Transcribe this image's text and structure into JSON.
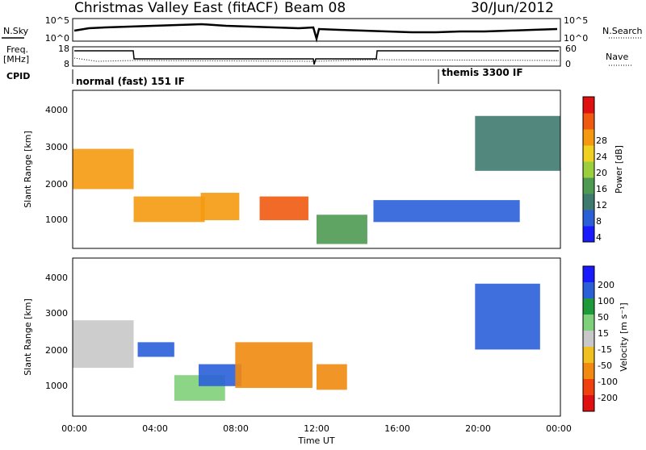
{
  "header": {
    "station": "Christmas Valley East (fitACF)",
    "beam": "Beam 08",
    "date": "30/Jun/2012"
  },
  "noise_panel": {
    "left_label": "N.Sky",
    "right_label": "N.Search",
    "left_ticks": [
      "10^5",
      "10^0"
    ],
    "right_ticks": [
      "10^5",
      "10^0"
    ]
  },
  "freq_panel": {
    "left_label_1": "Freq.",
    "left_label_2": "[MHz]",
    "right_label": "Nave",
    "left_ticks": [
      "18",
      "8"
    ],
    "right_ticks": [
      "60",
      "0"
    ]
  },
  "cpid": {
    "label": "CPID",
    "modes": [
      "normal (fast) 151 IF",
      "themis 3300 IF"
    ]
  },
  "power_panel": {
    "ylabel": "Slant Range [km]",
    "yticks": [
      "4000",
      "3000",
      "2000",
      "1000"
    ],
    "colorbar_label": "Power [dB]",
    "colorbar_ticks": [
      "28",
      "24",
      "20",
      "16",
      "12",
      "8",
      "4"
    ],
    "colors": [
      "#1a1aff",
      "#2a5fd8",
      "#3e7a6e",
      "#4f9a52",
      "#9bcf3e",
      "#f0d020",
      "#f59a10",
      "#f05a10",
      "#e01010"
    ]
  },
  "velocity_panel": {
    "ylabel": "Slant Range [km]",
    "yticks": [
      "4000",
      "3000",
      "2000",
      "1000"
    ],
    "colorbar_label": "Velocity [m s⁻¹]",
    "colorbar_ticks": [
      "200",
      "100",
      "50",
      "15",
      "-15",
      "-50",
      "-100",
      "-200"
    ],
    "colors": [
      "#1a1aff",
      "#2a5fd8",
      "#1f9a3a",
      "#7fd07a",
      "#c8c8c8",
      "#f0c020",
      "#f08a10",
      "#f04010",
      "#e01010"
    ]
  },
  "xaxis": {
    "label": "Time UT",
    "ticks": [
      "00:00",
      "04:00",
      "08:00",
      "12:00",
      "16:00",
      "20:00",
      "00:00"
    ]
  },
  "chart_data": {
    "type": "heatmap",
    "title": "Christmas Valley East (fitACF) Beam 08",
    "date": "30/Jun/2012",
    "x_range_hours": [
      0,
      24
    ],
    "y_range_km": [
      180,
      4500
    ],
    "power_scale_db": [
      0,
      30
    ],
    "velocity_scale": [
      -200,
      200
    ],
    "panels": [
      "N.Sky / N.Search",
      "Freq. / Nave",
      "CPID",
      "Power [dB]",
      "Velocity [m s⁻¹]"
    ],
    "cpid_modes": [
      {
        "name": "normal (fast) 151 IF",
        "start_hour": 0,
        "end_hour": 18
      },
      {
        "name": "themis 3300 IF",
        "start_hour": 18,
        "end_hour": 24
      }
    ],
    "power_echo_regions": [
      {
        "t": [
          0.0,
          3.0
        ],
        "range_km": [
          1800,
          2900
        ],
        "power_db": 22
      },
      {
        "t": [
          3.0,
          6.5
        ],
        "range_km": [
          900,
          1600
        ],
        "power_db": 24
      },
      {
        "t": [
          6.3,
          8.2
        ],
        "range_km": [
          950,
          1700
        ],
        "power_db": 22
      },
      {
        "t": [
          9.2,
          11.6
        ],
        "range_km": [
          950,
          1600
        ],
        "power_db": 26
      },
      {
        "t": [
          12.0,
          14.5
        ],
        "range_km": [
          300,
          1100
        ],
        "power_db": 14
      },
      {
        "t": [
          14.8,
          22.0
        ],
        "range_km": [
          900,
          1500
        ],
        "power_db": 8
      },
      {
        "t": [
          19.8,
          24.0
        ],
        "range_km": [
          2300,
          3800
        ],
        "power_db": 10
      }
    ],
    "velocity_echo_regions": [
      {
        "t": [
          0.0,
          3.0
        ],
        "range_km": [
          1500,
          2800
        ],
        "velocity": 0
      },
      {
        "t": [
          3.2,
          5.0
        ],
        "range_km": [
          1800,
          2200
        ],
        "velocity": 150
      },
      {
        "t": [
          5.0,
          7.5
        ],
        "range_km": [
          600,
          1300
        ],
        "velocity": 40
      },
      {
        "t": [
          6.2,
          8.3
        ],
        "range_km": [
          1000,
          1600
        ],
        "velocity": 180
      },
      {
        "t": [
          8.0,
          11.8
        ],
        "range_km": [
          950,
          2200
        ],
        "velocity": -80
      },
      {
        "t": [
          12.0,
          13.5
        ],
        "range_km": [
          900,
          1600
        ],
        "velocity": -60
      },
      {
        "t": [
          19.8,
          23.0
        ],
        "range_km": [
          2000,
          3800
        ],
        "velocity": 180
      }
    ]
  }
}
